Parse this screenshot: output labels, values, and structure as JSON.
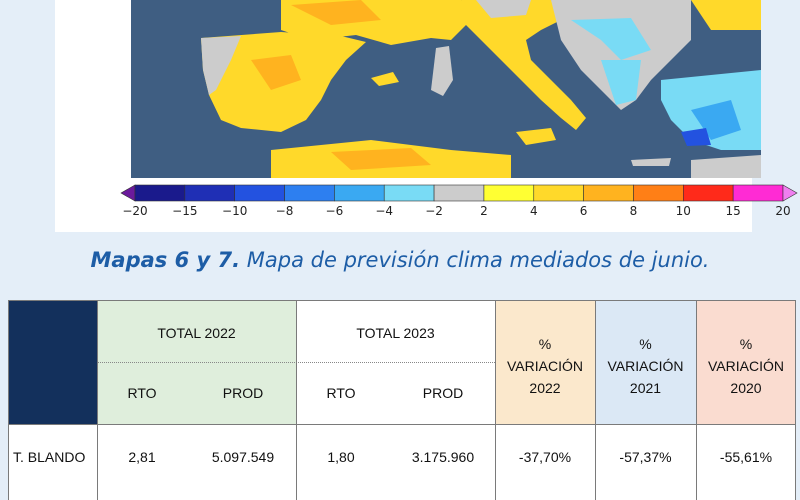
{
  "scale": {
    "ticks": [
      "−20",
      "−15",
      "−10",
      "−8",
      "−6",
      "−4",
      "−2",
      "2",
      "4",
      "6",
      "8",
      "10",
      "15",
      "20"
    ],
    "colors": [
      "#6b1a9c",
      "#1a1a8c",
      "#1f2fb5",
      "#2352e0",
      "#2d7ff0",
      "#3aa9f2",
      "#79dbf5",
      "#cccccc",
      "#ffff33",
      "#ffd92a",
      "#ffb31f",
      "#ff7f16",
      "#ff2a1a",
      "#ff2bd4",
      "#f07ff0"
    ]
  },
  "caption": {
    "bold": "Mapas 6 y 7.",
    "text": " Mapa de previsión clima mediados de junio."
  },
  "table": {
    "total_2022": "TOTAL 2022",
    "total_2023": "TOTAL 2023",
    "rto": "RTO",
    "prod": "PROD",
    "var": [
      {
        "pct": "%",
        "label": "VARIACIÓN",
        "year": "2022",
        "color": "#fbe8cc"
      },
      {
        "pct": "%",
        "label": "VARIACIÓN",
        "year": "2021",
        "color": "#dbe8f5"
      },
      {
        "pct": "%",
        "label": "VARIACIÓN",
        "year": "2020",
        "color": "#fadcd0"
      }
    ],
    "header_colors": {
      "dark": "#13305c",
      "green": "#dfeedc",
      "white": "#ffffff"
    },
    "rows": [
      {
        "name": "T. BLANDO",
        "rto_2022": "2,81",
        "prod_2022": "5.097.549",
        "rto_2023": "1,80",
        "prod_2023": "3.175.960",
        "v2022": "-37,70%",
        "v2021": "-57,37%",
        "v2020": "-55,61%"
      }
    ]
  }
}
